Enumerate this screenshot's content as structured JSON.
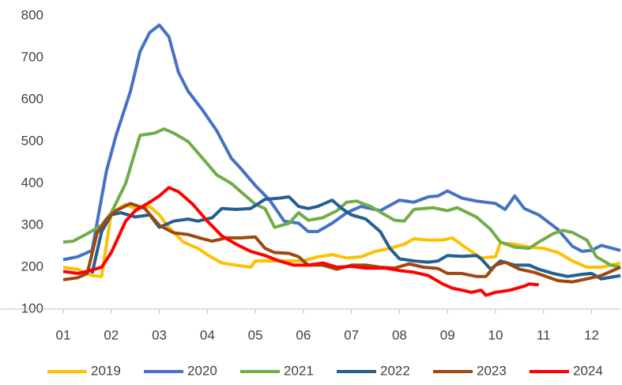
{
  "chart_data": {
    "type": "line",
    "xlim": [
      -0.3,
      12.6
    ],
    "ylim": [
      100,
      800
    ],
    "yticks": [
      100,
      200,
      300,
      400,
      500,
      600,
      700,
      800
    ],
    "xticks": [
      {
        "value": 1,
        "label": "01"
      },
      {
        "value": 2,
        "label": "02"
      },
      {
        "value": 3,
        "label": "03"
      },
      {
        "value": 4,
        "label": "04"
      },
      {
        "value": 5,
        "label": "05"
      },
      {
        "value": 6,
        "label": "06"
      },
      {
        "value": 7,
        "label": "07"
      },
      {
        "value": 8,
        "label": "08"
      },
      {
        "value": 9,
        "label": "09"
      },
      {
        "value": 10,
        "label": "10"
      },
      {
        "value": 11,
        "label": "11"
      },
      {
        "value": 12,
        "label": "12"
      }
    ],
    "grid": false,
    "legend": "bottom",
    "series": [
      {
        "name": "2019",
        "color": "#FFC000",
        "x": [
          1.0,
          1.3,
          1.6,
          1.8,
          2.0,
          2.3,
          2.5,
          2.8,
          3.0,
          3.2,
          3.5,
          3.8,
          4.0,
          4.3,
          4.6,
          4.9,
          5.0,
          5.4,
          5.8,
          6.0,
          6.3,
          6.6,
          6.9,
          7.2,
          7.5,
          7.8,
          8.1,
          8.3,
          8.6,
          8.9,
          9.1,
          9.4,
          9.7,
          10.0,
          10.1,
          10.4,
          10.7,
          11.0,
          11.3,
          11.6,
          11.9,
          12.2,
          12.6
        ],
        "values": [
          200,
          195,
          180,
          178,
          330,
          350,
          340,
          345,
          325,
          295,
          260,
          245,
          230,
          210,
          205,
          200,
          215,
          215,
          215,
          215,
          225,
          230,
          222,
          225,
          238,
          245,
          255,
          268,
          265,
          265,
          270,
          245,
          222,
          225,
          258,
          255,
          248,
          245,
          235,
          215,
          200,
          200,
          210
        ]
      },
      {
        "name": "2020",
        "color": "#4472C4",
        "x": [
          1.0,
          1.3,
          1.6,
          1.9,
          2.1,
          2.4,
          2.6,
          2.8,
          3.0,
          3.2,
          3.4,
          3.6,
          3.9,
          4.2,
          4.5,
          4.7,
          5.0,
          5.3,
          5.6,
          5.9,
          6.1,
          6.3,
          6.6,
          6.9,
          7.2,
          7.6,
          8.0,
          8.3,
          8.6,
          8.8,
          9.0,
          9.3,
          9.6,
          10.0,
          10.2,
          10.4,
          10.6,
          10.9,
          11.3,
          11.6,
          11.8,
          12.0,
          12.2,
          12.6
        ],
        "values": [
          218,
          225,
          240,
          430,
          515,
          620,
          715,
          760,
          778,
          750,
          665,
          620,
          575,
          525,
          460,
          435,
          395,
          360,
          310,
          305,
          285,
          285,
          305,
          330,
          345,
          335,
          360,
          355,
          368,
          370,
          382,
          365,
          358,
          352,
          338,
          370,
          340,
          325,
          290,
          250,
          238,
          240,
          252,
          240
        ]
      },
      {
        "name": "2021",
        "color": "#70AD47",
        "x": [
          1.0,
          1.2,
          1.5,
          1.8,
          2.0,
          2.3,
          2.6,
          2.9,
          3.1,
          3.3,
          3.6,
          3.9,
          4.2,
          4.5,
          4.7,
          5.0,
          5.2,
          5.4,
          5.7,
          5.9,
          6.1,
          6.4,
          6.7,
          6.9,
          7.1,
          7.4,
          7.7,
          7.9,
          8.1,
          8.3,
          8.7,
          9.0,
          9.2,
          9.6,
          9.9,
          10.1,
          10.4,
          10.7,
          10.9,
          11.2,
          11.4,
          11.6,
          11.9,
          12.1,
          12.4,
          12.6
        ],
        "values": [
          260,
          262,
          280,
          300,
          330,
          400,
          515,
          520,
          530,
          520,
          500,
          460,
          420,
          400,
          380,
          350,
          340,
          295,
          305,
          330,
          312,
          318,
          335,
          355,
          358,
          345,
          325,
          312,
          310,
          338,
          342,
          335,
          342,
          320,
          290,
          260,
          248,
          245,
          260,
          280,
          288,
          283,
          265,
          225,
          205,
          200
        ]
      },
      {
        "name": "2022",
        "color": "#255E91",
        "x": [
          1.6,
          1.8,
          2.0,
          2.2,
          2.5,
          2.8,
          3.0,
          3.3,
          3.6,
          3.8,
          4.1,
          4.3,
          4.6,
          4.9,
          5.2,
          5.5,
          5.7,
          5.9,
          6.1,
          6.3,
          6.6,
          6.8,
          7.0,
          7.3,
          7.6,
          7.8,
          8.0,
          8.3,
          8.6,
          8.8,
          9.0,
          9.3,
          9.6,
          9.7,
          9.9,
          10.1,
          10.4,
          10.7,
          10.9,
          11.2,
          11.5,
          11.8,
          12.0,
          12.2,
          12.6
        ],
        "values": [
          185,
          285,
          325,
          330,
          320,
          325,
          295,
          310,
          315,
          310,
          318,
          340,
          338,
          340,
          362,
          365,
          368,
          345,
          340,
          345,
          360,
          340,
          325,
          315,
          285,
          245,
          220,
          215,
          212,
          215,
          228,
          226,
          228,
          220,
          195,
          215,
          205,
          205,
          195,
          185,
          178,
          183,
          185,
          172,
          180
        ]
      },
      {
        "name": "2023",
        "color": "#9E480E",
        "x": [
          1.0,
          1.3,
          1.5,
          1.7,
          1.9,
          2.1,
          2.4,
          2.7,
          3.0,
          3.3,
          3.6,
          3.9,
          4.1,
          4.4,
          4.7,
          5.0,
          5.2,
          5.4,
          5.7,
          5.9,
          6.1,
          6.4,
          6.7,
          7.0,
          7.3,
          7.6,
          7.9,
          8.2,
          8.5,
          8.8,
          9.0,
          9.3,
          9.6,
          9.8,
          10.0,
          10.2,
          10.5,
          10.8,
          11.0,
          11.3,
          11.6,
          11.9,
          12.2,
          12.6
        ],
        "values": [
          170,
          175,
          185,
          280,
          315,
          335,
          352,
          340,
          300,
          282,
          278,
          268,
          262,
          270,
          270,
          272,
          245,
          235,
          233,
          225,
          205,
          205,
          195,
          205,
          205,
          200,
          198,
          208,
          200,
          197,
          185,
          185,
          178,
          178,
          205,
          212,
          195,
          188,
          180,
          168,
          165,
          172,
          180,
          200
        ]
      },
      {
        "name": "2024",
        "color": "#FF0000",
        "x": [
          1.0,
          1.3,
          1.5,
          1.8,
          2.0,
          2.3,
          2.5,
          2.8,
          3.0,
          3.2,
          3.4,
          3.7,
          4.0,
          4.3,
          4.6,
          4.9,
          5.2,
          5.5,
          5.8,
          6.1,
          6.4,
          6.7,
          7.0,
          7.3,
          7.7,
          8.0,
          8.3,
          8.6,
          8.9,
          9.1,
          9.3,
          9.5,
          9.7,
          9.8,
          10.0,
          10.3,
          10.6,
          10.7,
          10.9
        ],
        "values": [
          190,
          185,
          190,
          200,
          235,
          310,
          335,
          355,
          370,
          390,
          380,
          350,
          310,
          275,
          255,
          238,
          228,
          215,
          205,
          205,
          210,
          200,
          202,
          198,
          198,
          192,
          188,
          180,
          160,
          150,
          145,
          140,
          145,
          133,
          140,
          145,
          155,
          160,
          158
        ]
      }
    ]
  }
}
